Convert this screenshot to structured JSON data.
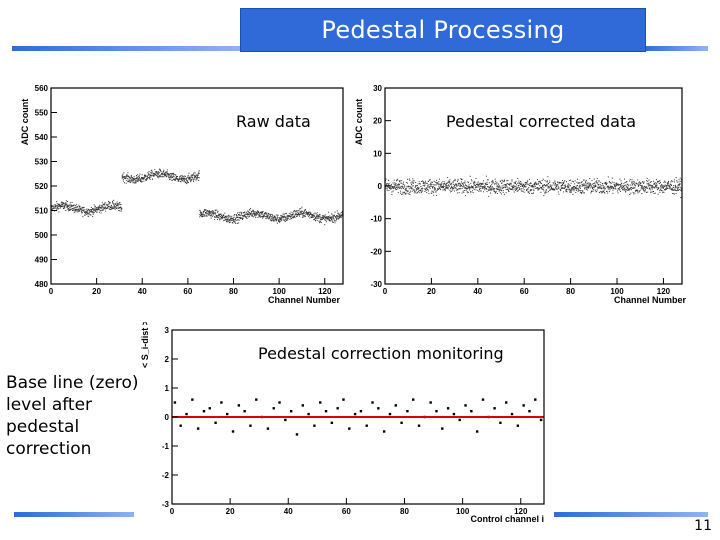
{
  "slide": {
    "title": "Pedestal Processing",
    "raw_label": "Raw data",
    "corrected_label": "Pedestal corrected data",
    "monitor_label": "Pedestal correction monitoring",
    "side_note": "Base line (zero) level after pedestal correction",
    "page_number": "11"
  },
  "colors": {
    "title_bg": "#2f6ad8",
    "accent_bar": "#4a86e8",
    "data_points": "#333333",
    "baseline": "#dd0000"
  },
  "chart_data": [
    {
      "type": "scatter",
      "title": "",
      "xlabel": "Channel Number",
      "ylabel": "ADC count",
      "xlim": [
        0,
        128
      ],
      "ylim": [
        480,
        560
      ],
      "x_ticks": [
        "0",
        "20",
        "40",
        "60",
        "80",
        "100",
        "120"
      ],
      "y_ticks": [
        "480",
        "490",
        "500",
        "510",
        "520",
        "530",
        "540",
        "550",
        "560"
      ],
      "segments": [
        {
          "x_range": [
            0,
            31
          ],
          "mean": 511
        },
        {
          "x_range": [
            31,
            65
          ],
          "mean": 524
        },
        {
          "x_range": [
            65,
            128
          ],
          "mean": 508
        }
      ]
    },
    {
      "type": "scatter",
      "title": "",
      "xlabel": "Channel Number",
      "ylabel": "ADC count",
      "xlim": [
        0,
        128
      ],
      "ylim": [
        -30,
        30
      ],
      "x_ticks": [
        "0",
        "20",
        "40",
        "60",
        "80",
        "100",
        "120"
      ],
      "y_ticks": [
        "-30",
        "-20",
        "-10",
        "0",
        "10",
        "20",
        "30"
      ],
      "mean": 0
    },
    {
      "type": "scatter",
      "title": "",
      "xlabel": "Control channel i",
      "ylabel": "< S_i-dist >",
      "xlim": [
        0,
        128
      ],
      "ylim": [
        -3,
        3
      ],
      "x_ticks": [
        "0",
        "20",
        "40",
        "60",
        "80",
        "100",
        "120"
      ],
      "y_ticks": [
        "-3",
        "-2",
        "-1",
        "0",
        "1",
        "2",
        "3"
      ],
      "baseline": 0,
      "x": [
        1,
        3,
        5,
        7,
        9,
        11,
        13,
        15,
        17,
        19,
        21,
        23,
        25,
        27,
        29,
        31,
        33,
        35,
        37,
        39,
        41,
        43,
        45,
        47,
        49,
        51,
        53,
        55,
        57,
        59,
        61,
        63,
        65,
        67,
        69,
        71,
        73,
        75,
        77,
        79,
        81,
        83,
        85,
        87,
        89,
        91,
        93,
        95,
        97,
        99,
        101,
        103,
        105,
        107,
        109,
        111,
        113,
        115,
        117,
        119,
        121,
        123,
        125,
        127
      ],
      "values": [
        0.5,
        -0.3,
        0.1,
        0.6,
        -0.4,
        0.2,
        0.3,
        -0.2,
        0.5,
        0.1,
        -0.5,
        0.4,
        0.2,
        -0.3,
        0.6,
        0.0,
        -0.4,
        0.3,
        0.5,
        -0.1,
        0.2,
        -0.6,
        0.4,
        0.1,
        -0.3,
        0.5,
        0.2,
        -0.2,
        0.3,
        0.6,
        -0.4,
        0.1,
        0.2,
        -0.3,
        0.5,
        0.3,
        -0.5,
        0.1,
        0.4,
        -0.2,
        0.2,
        0.6,
        -0.3,
        0.0,
        0.5,
        0.2,
        -0.4,
        0.3,
        0.1,
        -0.1,
        0.4,
        0.2,
        -0.5,
        0.6,
        0.0,
        0.3,
        -0.2,
        0.5,
        0.1,
        -0.3,
        0.4,
        0.2,
        0.6,
        -0.1
      ]
    }
  ]
}
